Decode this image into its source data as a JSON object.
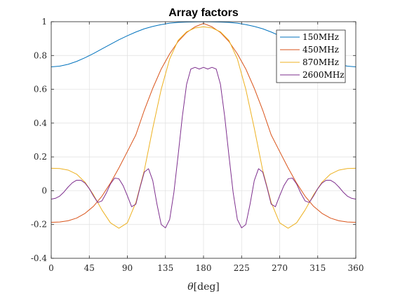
{
  "chart_data": {
    "type": "line",
    "title": "Array factors",
    "xlabel_symbol": "θ",
    "xlabel_unit": "[deg]",
    "ylabel": "",
    "xlim": [
      0,
      360
    ],
    "ylim": [
      -0.4,
      1
    ],
    "xticks": [
      0,
      45,
      90,
      135,
      180,
      225,
      270,
      315,
      360
    ],
    "yticks": [
      -0.4,
      -0.2,
      0,
      0.2,
      0.4,
      0.6,
      0.8,
      1
    ],
    "ytick_labels": [
      "-0.4",
      "-0.2",
      "0",
      "0.2",
      "0.4",
      "0.6",
      "0.8",
      "1"
    ],
    "grid": true,
    "legend_position": "top-right",
    "series": [
      {
        "name": "150MHz",
        "color": "#0072BD",
        "x": [
          0,
          10,
          20,
          30,
          40,
          50,
          60,
          70,
          80,
          90,
          100,
          110,
          120,
          130,
          140,
          150,
          160,
          170,
          180,
          190,
          200,
          210,
          220,
          230,
          240,
          250,
          260,
          270,
          280,
          290,
          300,
          310,
          320,
          330,
          340,
          350,
          360
        ],
        "y": [
          0.733,
          0.737,
          0.748,
          0.765,
          0.787,
          0.812,
          0.839,
          0.866,
          0.893,
          0.917,
          0.939,
          0.958,
          0.972,
          0.983,
          0.991,
          0.996,
          0.998,
          0.999,
          1.0,
          0.999,
          0.998,
          0.996,
          0.991,
          0.983,
          0.972,
          0.958,
          0.939,
          0.917,
          0.893,
          0.866,
          0.839,
          0.812,
          0.787,
          0.765,
          0.748,
          0.737,
          0.733
        ]
      },
      {
        "name": "450MHz",
        "color": "#D95319",
        "x": [
          0,
          10,
          20,
          30,
          40,
          50,
          60,
          70,
          80,
          90,
          100,
          110,
          120,
          130,
          140,
          150,
          160,
          170,
          180,
          190,
          200,
          210,
          220,
          230,
          240,
          250,
          260,
          270,
          280,
          290,
          300,
          310,
          320,
          330,
          340,
          350,
          360
        ],
        "y": [
          -0.187,
          -0.185,
          -0.178,
          -0.162,
          -0.134,
          -0.092,
          -0.032,
          0.045,
          0.135,
          0.232,
          0.33,
          0.476,
          0.606,
          0.72,
          0.81,
          0.883,
          0.936,
          0.97,
          0.99,
          0.97,
          0.936,
          0.883,
          0.81,
          0.72,
          0.606,
          0.476,
          0.33,
          0.232,
          0.135,
          0.045,
          -0.032,
          -0.092,
          -0.134,
          -0.162,
          -0.178,
          -0.185,
          -0.187
        ]
      },
      {
        "name": "870MHz",
        "color": "#EDB120",
        "x": [
          0,
          10,
          20,
          30,
          40,
          50,
          60,
          70,
          80,
          90,
          100,
          110,
          120,
          130,
          140,
          150,
          160,
          170,
          180,
          190,
          200,
          210,
          220,
          230,
          240,
          250,
          260,
          270,
          280,
          290,
          300,
          310,
          320,
          330,
          340,
          350,
          360
        ],
        "y": [
          0.133,
          0.131,
          0.122,
          0.098,
          0.05,
          -0.025,
          -0.115,
          -0.19,
          -0.222,
          -0.19,
          -0.07,
          0.12,
          0.37,
          0.6,
          0.78,
          0.89,
          0.94,
          0.963,
          0.97,
          0.963,
          0.94,
          0.89,
          0.78,
          0.6,
          0.37,
          0.12,
          -0.07,
          -0.19,
          -0.222,
          -0.19,
          -0.115,
          -0.025,
          0.05,
          0.098,
          0.122,
          0.131,
          0.133
        ]
      },
      {
        "name": "2600MHz",
        "color": "#7E2F8E",
        "x": [
          0,
          5,
          10,
          15,
          20,
          25,
          30,
          35,
          40,
          45,
          50,
          55,
          60,
          65,
          70,
          75,
          80,
          85,
          90,
          95,
          100,
          105,
          110,
          115,
          120,
          125,
          130,
          135,
          140,
          145,
          150,
          155,
          160,
          165,
          170,
          175,
          180,
          185,
          190,
          195,
          200,
          205,
          210,
          215,
          220,
          225,
          230,
          235,
          240,
          245,
          250,
          255,
          260,
          265,
          270,
          275,
          280,
          285,
          290,
          295,
          300,
          305,
          310,
          315,
          320,
          325,
          330,
          335,
          340,
          345,
          350,
          355,
          360
        ],
        "y": [
          -0.05,
          -0.045,
          -0.032,
          -0.008,
          0.022,
          0.047,
          0.062,
          0.062,
          0.045,
          0.012,
          -0.032,
          -0.07,
          -0.06,
          -0.015,
          0.04,
          0.075,
          0.07,
          0.03,
          -0.03,
          -0.095,
          -0.08,
          0.02,
          0.11,
          0.13,
          0.06,
          -0.08,
          -0.2,
          -0.22,
          -0.17,
          -0.01,
          0.21,
          0.44,
          0.63,
          0.72,
          0.73,
          0.72,
          0.73,
          0.72,
          0.73,
          0.72,
          0.63,
          0.44,
          0.21,
          -0.01,
          -0.17,
          -0.22,
          -0.2,
          -0.08,
          0.06,
          0.13,
          0.11,
          0.02,
          -0.08,
          -0.095,
          -0.03,
          0.03,
          0.07,
          0.075,
          0.04,
          -0.015,
          -0.06,
          -0.07,
          -0.032,
          0.012,
          0.045,
          0.062,
          0.062,
          0.047,
          0.022,
          -0.008,
          -0.032,
          -0.045,
          -0.05
        ]
      }
    ]
  }
}
